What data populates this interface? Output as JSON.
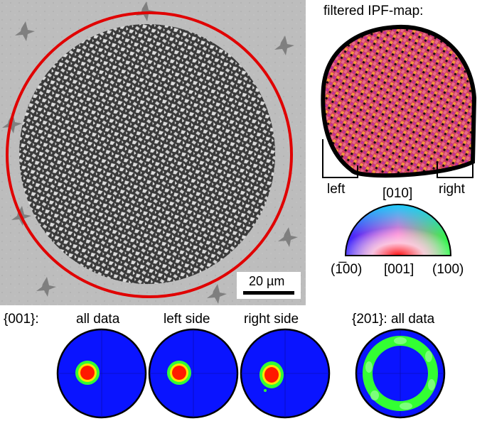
{
  "micrograph": {
    "scale_bar_label": "20 µm"
  },
  "ipf_map": {
    "title": "filtered IPF-map:",
    "left_label": "left",
    "right_label": "right"
  },
  "color_key": {
    "top_label": "[010]",
    "bottom_left_label": "(1̅00)",
    "bottom_center_label": "[001]",
    "bottom_right_label": "(100)"
  },
  "pole_figures": {
    "row_label": "{001}:",
    "titles": [
      "all data",
      "left side",
      "right side",
      "{201}: all data"
    ]
  },
  "colors": {
    "boundary_circle": "#e00000",
    "pole_background": "#0a14ff",
    "pole_max": "#ff1a00",
    "pole_mid": "#ffe600",
    "pole_low": "#33ff33"
  }
}
